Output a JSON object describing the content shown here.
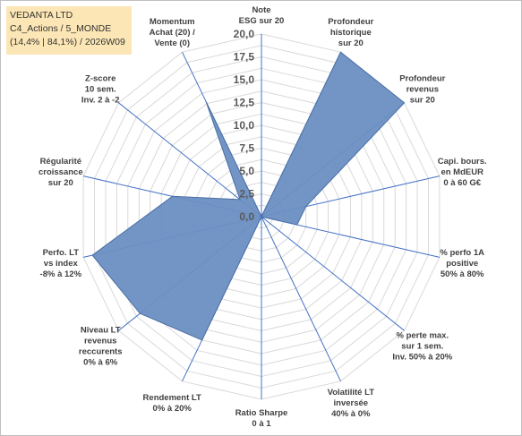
{
  "header": {
    "line1": "VEDANTA LTD",
    "line2": "C4_Actions / 5_MONDE",
    "line3": "(14,4% | 84,1%) / 2026W09"
  },
  "chart_data": {
    "type": "radar",
    "rmin": 0,
    "rmax": 20,
    "tick_step": 2.5,
    "minor_rings": 16,
    "tick_labels": [
      "0,0",
      "2,5",
      "5,0",
      "7,5",
      "10,0",
      "12,5",
      "15,0",
      "17,5",
      "20,0"
    ],
    "colors": {
      "fill": "#6b8fc2",
      "stroke": "#4a6fa5",
      "spoke": "#4472c4",
      "grid": "#d9d9d9"
    },
    "axes": [
      {
        "lines": [
          "Note",
          "ESG sur 20"
        ],
        "value": 0
      },
      {
        "lines": [
          "Profondeur",
          "historique",
          "sur 20"
        ],
        "value": 20
      },
      {
        "lines": [
          "Profondeur",
          "revenus",
          "sur 20"
        ],
        "value": 20
      },
      {
        "lines": [
          "Capi. bours.",
          "en MdEUR",
          "0 à 60 G€"
        ],
        "value": 5
      },
      {
        "lines": [
          "% perfo 1A",
          "positive",
          "50% à 80%"
        ],
        "value": 4
      },
      {
        "lines": [
          "% perte max.",
          "sur 1 sem.",
          "Inv. 50% à 20%"
        ],
        "value": 0
      },
      {
        "lines": [
          "Volatilité LT",
          "inversée",
          "40% à 0%"
        ],
        "value": 0
      },
      {
        "lines": [
          "Ratio Sharpe",
          "0 à 1"
        ],
        "value": 0
      },
      {
        "lines": [
          "Rendement LT",
          "0% à 20%"
        ],
        "value": 15
      },
      {
        "lines": [
          "Niveau LT",
          "revenus",
          "reccurents",
          "0% à 6%"
        ],
        "value": 17
      },
      {
        "lines": [
          "Perfo. LT",
          "vs index",
          "-8% à 12%"
        ],
        "value": 19
      },
      {
        "lines": [
          "Régularité",
          "croissance",
          "sur 20"
        ],
        "value": 10
      },
      {
        "lines": [
          "Z-score",
          "10 sem.",
          "Inv. 2 à -2"
        ],
        "value": 3
      },
      {
        "lines": [
          "Momentum",
          "Achat (20) /",
          "Vente (0)"
        ],
        "value": 14
      }
    ]
  }
}
